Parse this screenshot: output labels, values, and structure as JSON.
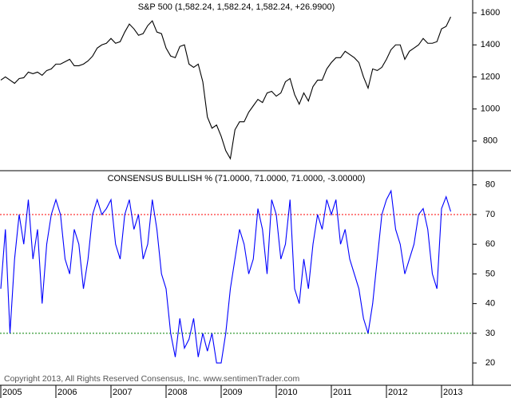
{
  "chart_data": [
    {
      "type": "line",
      "title": "S&P 500 (1,582.24, 1,582.24, 1,582.24, +26.9900)",
      "color": "#000000",
      "values": [
        1180,
        1200,
        1180,
        1160,
        1190,
        1195,
        1230,
        1220,
        1230,
        1210,
        1240,
        1250,
        1280,
        1280,
        1295,
        1310,
        1270,
        1270,
        1280,
        1300,
        1330,
        1380,
        1400,
        1410,
        1440,
        1410,
        1420,
        1480,
        1530,
        1500,
        1460,
        1470,
        1520,
        1550,
        1480,
        1470,
        1380,
        1330,
        1320,
        1390,
        1400,
        1280,
        1260,
        1280,
        1170,
        950,
        880,
        900,
        830,
        740,
        690,
        870,
        920,
        920,
        980,
        1020,
        1060,
        1040,
        1100,
        1110,
        1080,
        1100,
        1170,
        1190,
        1090,
        1030,
        1100,
        1050,
        1140,
        1180,
        1180,
        1250,
        1290,
        1320,
        1320,
        1360,
        1340,
        1320,
        1290,
        1200,
        1130,
        1250,
        1240,
        1260,
        1310,
        1370,
        1400,
        1400,
        1310,
        1360,
        1380,
        1400,
        1440,
        1410,
        1410,
        1420,
        1500,
        1515,
        1575
      ],
      "ylim": [
        620,
        1680
      ],
      "yticks": [
        800,
        1000,
        1200,
        1400,
        1600
      ]
    },
    {
      "type": "line",
      "title": "CONSENSUS BULLISH % (71.0000, 71.0000, 71.0000, -3.00000)",
      "color": "#0000ff",
      "annotation": "Copyright 2013, All Rights Reserved  Consensus, Inc.  www.sentimenTrader.com",
      "categories": [
        "2005",
        null,
        null,
        null,
        null,
        null,
        null,
        null,
        null,
        null,
        null,
        null,
        "2006",
        null,
        null,
        null,
        null,
        null,
        null,
        null,
        null,
        null,
        null,
        null,
        "2007",
        null,
        null,
        null,
        null,
        null,
        null,
        null,
        null,
        null,
        null,
        null,
        "2008",
        null,
        null,
        null,
        null,
        null,
        null,
        null,
        null,
        null,
        null,
        null,
        "2009",
        null,
        null,
        null,
        null,
        null,
        null,
        null,
        null,
        null,
        null,
        null,
        "2010",
        null,
        null,
        null,
        null,
        null,
        null,
        null,
        null,
        null,
        null,
        null,
        "2011",
        null,
        null,
        null,
        null,
        null,
        null,
        null,
        null,
        null,
        null,
        null,
        "2012",
        null,
        null,
        null,
        null,
        null,
        null,
        null,
        null,
        null,
        null,
        null,
        "2013",
        null,
        null
      ],
      "values": [
        45,
        65,
        30,
        55,
        70,
        60,
        75,
        55,
        65,
        40,
        60,
        70,
        75,
        70,
        55,
        50,
        65,
        60,
        45,
        55,
        70,
        75,
        70,
        72,
        75,
        60,
        55,
        70,
        75,
        65,
        70,
        55,
        60,
        75,
        65,
        50,
        45,
        30,
        22,
        35,
        25,
        28,
        35,
        22,
        30,
        24,
        30,
        20,
        20,
        30,
        45,
        55,
        65,
        60,
        50,
        55,
        72,
        65,
        50,
        75,
        70,
        55,
        60,
        75,
        45,
        40,
        55,
        45,
        60,
        70,
        65,
        75,
        70,
        75,
        60,
        65,
        55,
        50,
        45,
        35,
        30,
        40,
        55,
        70,
        75,
        78,
        65,
        60,
        50,
        55,
        60,
        70,
        72,
        65,
        50,
        45,
        72,
        76,
        71
      ],
      "ylim": [
        12.5,
        84.5
      ],
      "yticks": [
        20,
        30,
        40,
        50,
        60,
        70,
        80
      ],
      "hlines": [
        {
          "value": 70,
          "color": "#ff0000"
        },
        {
          "value": 30,
          "color": "#008000"
        }
      ]
    }
  ]
}
